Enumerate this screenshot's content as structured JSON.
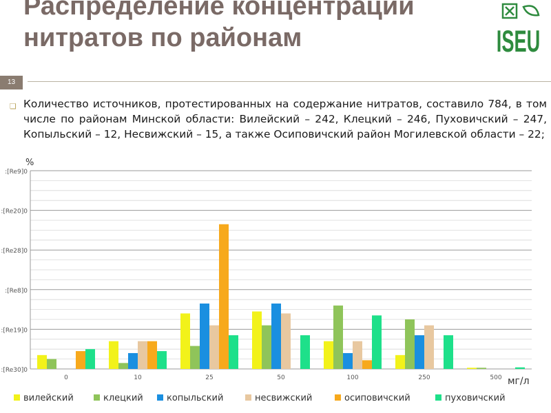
{
  "slide": {
    "title": "Распределение концентраций нитратов по районам",
    "slide_number": "13",
    "body": "Количество источников, протестированных на содержание нитратов, составило 784, в том числе по районам Минской области: Вилейский – 242, Клецкий – 246, Пуховичский – 247, Копыльский – 12, Несвижский – 15, а также Осиповичский район Могилевской области – 22;"
  },
  "logo": {
    "text": "ISEU",
    "color": "#2e8b3e"
  },
  "chart_data": {
    "type": "bar",
    "ylabel": "%",
    "xlabel": "мг/л",
    "categories": [
      "0",
      "10",
      "25",
      "50",
      "100",
      "250",
      "500"
    ],
    "ytick_labels": [
      ":[Re30]0",
      ":[Re19]0",
      ":[Re8]0",
      ":[Re28]0",
      ":[Re20]0",
      ":[Re9]0"
    ],
    "ylim": [
      0,
      50
    ],
    "grid": true,
    "legend_position": "bottom",
    "series": [
      {
        "name": "вилейский",
        "color": "#f2f21a",
        "values": [
          3.5,
          7.0,
          14.0,
          14.5,
          7.0,
          3.5,
          0.3
        ]
      },
      {
        "name": "клецкий",
        "color": "#8fc45a",
        "values": [
          2.5,
          1.5,
          5.8,
          11.0,
          16.0,
          12.5,
          0.3
        ]
      },
      {
        "name": "копыльский",
        "color": "#1a8fe0",
        "values": [
          0.0,
          4.0,
          16.5,
          16.5,
          4.0,
          8.5,
          0.0
        ]
      },
      {
        "name": "несвижский",
        "color": "#e8c8a0",
        "values": [
          0.0,
          7.0,
          11.0,
          14.0,
          7.0,
          11.0,
          0.0
        ]
      },
      {
        "name": "осиповичский",
        "color": "#f7a91c",
        "values": [
          4.5,
          7.0,
          36.5,
          0.0,
          2.2,
          0.0,
          0.0
        ]
      },
      {
        "name": "пуховичский",
        "color": "#1ee08a",
        "values": [
          5.0,
          4.5,
          8.5,
          8.5,
          13.5,
          8.5,
          0.4
        ]
      }
    ]
  }
}
